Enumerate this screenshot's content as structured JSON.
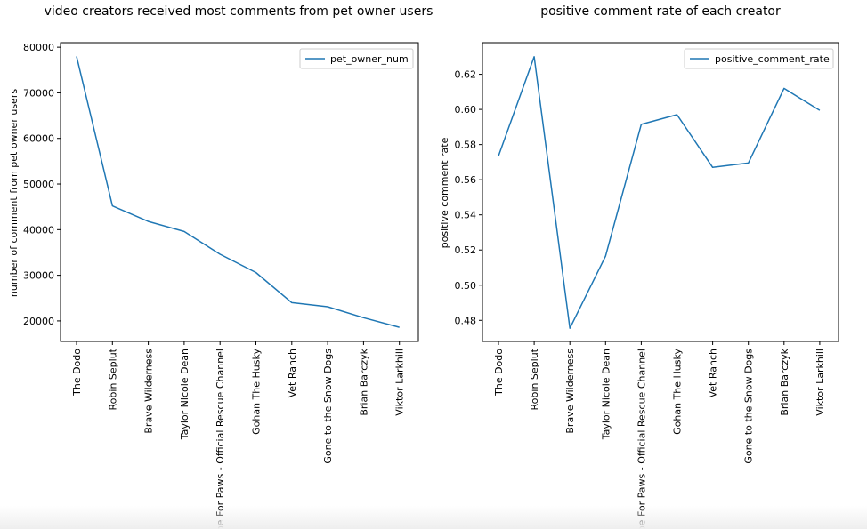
{
  "chart_data": [
    {
      "type": "line",
      "title": "video creators received most comments from pet owner users",
      "xlabel": "",
      "ylabel": "number of comment from pet owner users",
      "categories": [
        "The Dodo",
        "Robin Seplut",
        "Brave Wilderness",
        "Taylor Nicole Dean",
        "Hope For Paws - Official Rescue Channel",
        "Gohan The Husky",
        "Vet Ranch",
        "Gone to the Snow Dogs",
        "Brian Barczyk",
        "Viktor Larkhill"
      ],
      "series": [
        {
          "name": "pet_owner_num",
          "values": [
            78000,
            45200,
            41800,
            39600,
            34600,
            30600,
            24000,
            23100,
            20700,
            18600
          ]
        }
      ],
      "ylim": [
        15500,
        81000
      ],
      "yticks": [
        20000,
        30000,
        40000,
        50000,
        60000,
        70000,
        80000
      ],
      "grid": false,
      "legend": "top-right",
      "color": "#1f77b4"
    },
    {
      "type": "line",
      "title": "positive comment rate of each creator",
      "xlabel": "",
      "ylabel": "positive comment rate",
      "categories": [
        "The Dodo",
        "Robin Seplut",
        "Brave Wilderness",
        "Taylor Nicole Dean",
        "Hope For Paws - Official Rescue Channel",
        "Gohan The Husky",
        "Vet Ranch",
        "Gone to the Snow Dogs",
        "Brian Barczyk",
        "Viktor Larkhill"
      ],
      "series": [
        {
          "name": "positive_comment_rate",
          "values": [
            0.5735,
            0.63,
            0.4755,
            0.5165,
            0.5915,
            0.597,
            0.567,
            0.5695,
            0.612,
            0.5995
          ]
        }
      ],
      "ylim": [
        0.468,
        0.638
      ],
      "yticks": [
        0.48,
        0.5,
        0.52,
        0.54,
        0.56,
        0.58,
        0.6,
        0.62
      ],
      "ytick_decimals": 2,
      "grid": false,
      "legend": "top-right",
      "color": "#1f77b4"
    }
  ]
}
